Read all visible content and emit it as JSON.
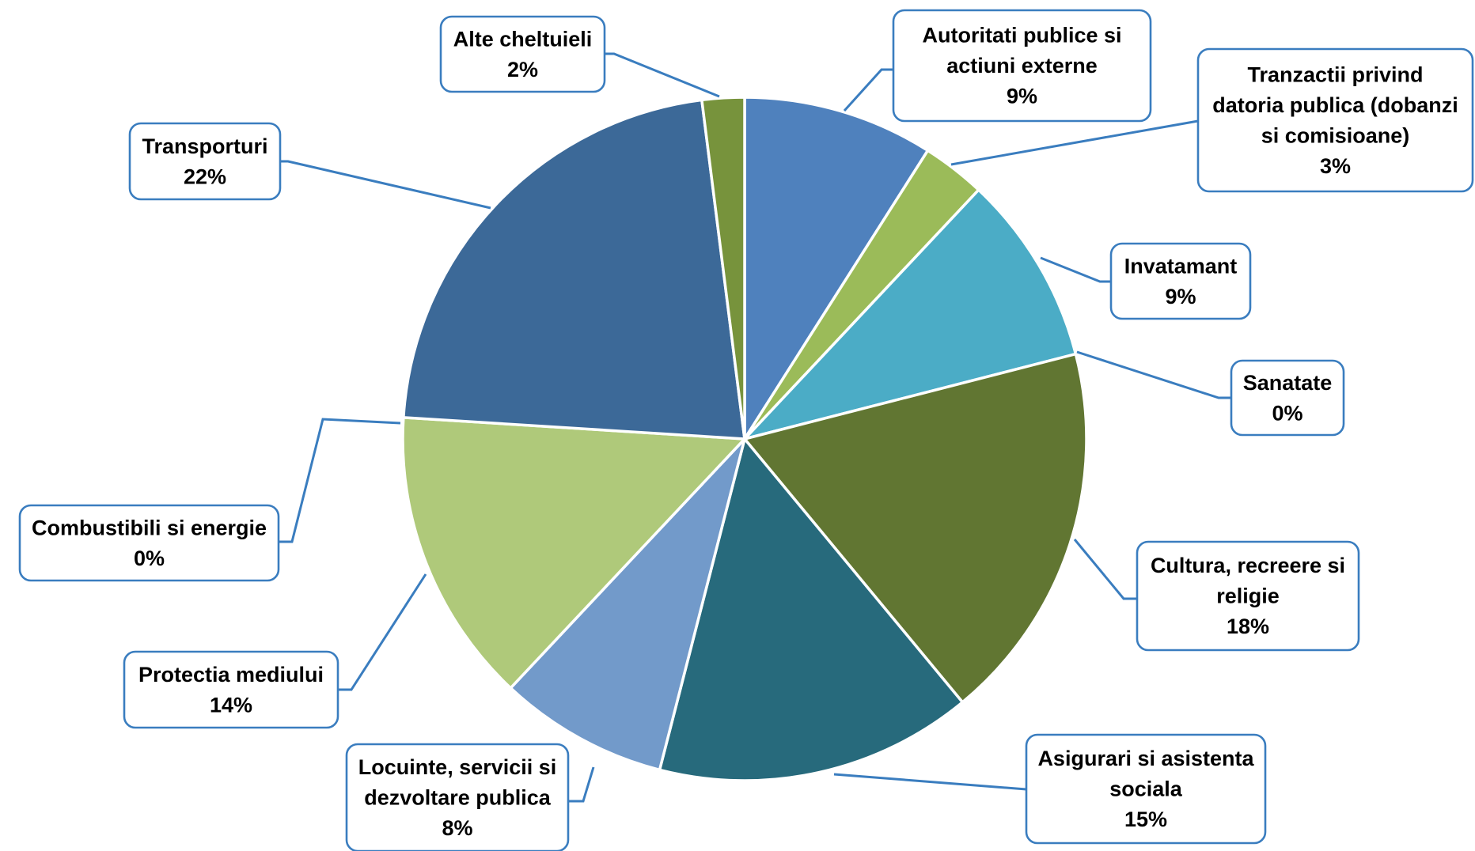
{
  "chart_data": {
    "type": "pie",
    "title": "",
    "slices": [
      {
        "label": [
          "Autoritati publice si",
          "actiuni externe"
        ],
        "value": 9,
        "value_label": "9%",
        "color": "#4f81bd"
      },
      {
        "label": [
          "Tranzactii privind",
          "datoria publica (dobanzi",
          "si comisioane)"
        ],
        "value": 3,
        "value_label": "3%",
        "color": "#9bbb59"
      },
      {
        "label": [
          "Invatamant"
        ],
        "value": 9,
        "value_label": "9%",
        "color": "#4bacc6"
      },
      {
        "label": [
          "Sanatate"
        ],
        "value": 0,
        "value_label": "0%",
        "color": "#f79646"
      },
      {
        "label": [
          "Cultura, recreere si",
          "religie"
        ],
        "value": 18,
        "value_label": "18%",
        "color": "#617632"
      },
      {
        "label": [
          "Asigurari si asistenta",
          "sociala"
        ],
        "value": 15,
        "value_label": "15%",
        "color": "#276a7c"
      },
      {
        "label": [
          "Locuinte, servicii si",
          "dezvoltare publica"
        ],
        "value": 8,
        "value_label": "8%",
        "color": "#729aca"
      },
      {
        "label": [
          "Protectia mediului"
        ],
        "value": 14,
        "value_label": "14%",
        "color": "#afc97a"
      },
      {
        "label": [
          "Combustibili si energie"
        ],
        "value": 0,
        "value_label": "0%",
        "color": "#c0504d"
      },
      {
        "label": [
          "Transporturi"
        ],
        "value": 22,
        "value_label": "22%",
        "color": "#3c6998"
      },
      {
        "label": [
          "Alte cheltuieli"
        ],
        "value": 2,
        "value_label": "2%",
        "color": "#77933c"
      }
    ]
  }
}
